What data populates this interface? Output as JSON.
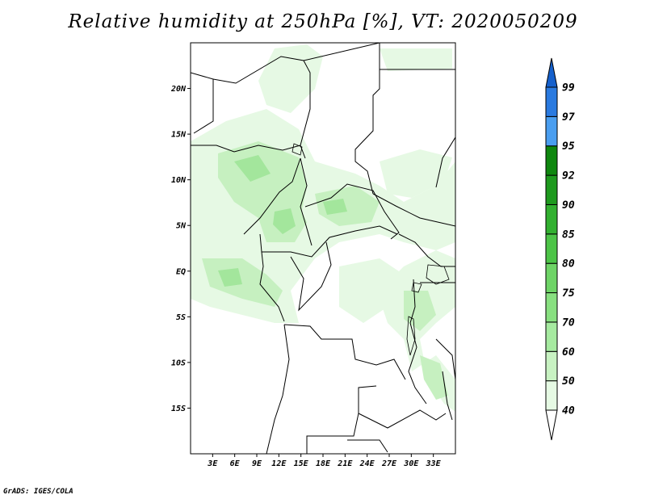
{
  "title": "Relative humidity at 250hPa [%], VT: 2020050209",
  "credit": "GrADS: IGES/COLA",
  "map": {
    "lon_range": [
      0,
      36
    ],
    "lat_range": [
      -20,
      25
    ],
    "lat_ticks": [
      {
        "value": 20,
        "label": "20N"
      },
      {
        "value": 15,
        "label": "15N"
      },
      {
        "value": 10,
        "label": "10N"
      },
      {
        "value": 5,
        "label": "5N"
      },
      {
        "value": 0,
        "label": "EQ"
      },
      {
        "value": -5,
        "label": "5S"
      },
      {
        "value": -10,
        "label": "10S"
      },
      {
        "value": -15,
        "label": "15S"
      }
    ],
    "lon_ticks": [
      {
        "value": 3,
        "label": "3E"
      },
      {
        "value": 6,
        "label": "6E"
      },
      {
        "value": 9,
        "label": "9E"
      },
      {
        "value": 12,
        "label": "12E"
      },
      {
        "value": 15,
        "label": "15E"
      },
      {
        "value": 18,
        "label": "18E"
      },
      {
        "value": 21,
        "label": "21E"
      },
      {
        "value": 24,
        "label": "24E"
      },
      {
        "value": 27,
        "label": "27E"
      },
      {
        "value": 30,
        "label": "30E"
      },
      {
        "value": 33,
        "label": "33E"
      }
    ],
    "fill_colors": [
      "#e6f9e4",
      "#c6f0c0",
      "#a3e69c"
    ]
  },
  "colorbar": {
    "levels": [
      "40",
      "50",
      "60",
      "70",
      "75",
      "80",
      "85",
      "90",
      "92",
      "95",
      "97",
      "99"
    ],
    "colors": [
      "#ffffff",
      "#e6fae4",
      "#c8f2c2",
      "#a6eaa0",
      "#88e080",
      "#6ed466",
      "#4cc447",
      "#32b030",
      "#1e9a1e",
      "#0f870f",
      "#4a9ef0",
      "#2a7ae0",
      "#1560cc"
    ]
  }
}
